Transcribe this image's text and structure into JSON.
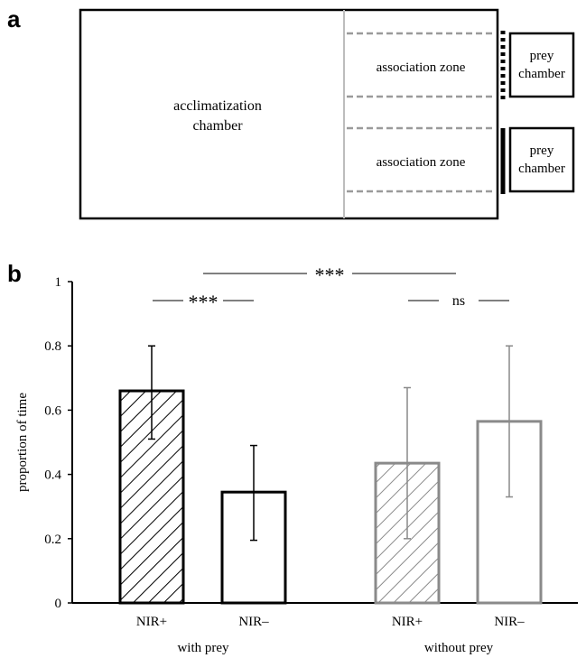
{
  "panel_a": {
    "label": "a",
    "acclimatization_chamber": "acclimatization\nchamber",
    "zones": [
      {
        "label": "association zone",
        "chamber_label": "prey\nchamber",
        "barrier": "dotted"
      },
      {
        "label": "association zone",
        "chamber_label": "prey\nchamber",
        "barrier": "solid"
      }
    ]
  },
  "panel_b": {
    "label": "b"
  },
  "chart_data": {
    "type": "bar",
    "ylabel": "proportion of time",
    "ylim": [
      0,
      1
    ],
    "yticks": [
      "0",
      "0.2",
      "0.4",
      "0.6",
      "0.8",
      "1"
    ],
    "groups": [
      {
        "name": "with prey",
        "bars": [
          {
            "label": "NIR+",
            "value": 0.66,
            "err_low": 0.51,
            "err_high": 0.8,
            "fill": "hatched",
            "color": "#000000"
          },
          {
            "label": "NIR–",
            "value": 0.345,
            "err_low": 0.195,
            "err_high": 0.49,
            "fill": "open",
            "color": "#000000"
          }
        ],
        "significance": "***"
      },
      {
        "name": "without prey",
        "bars": [
          {
            "label": "NIR+",
            "value": 0.435,
            "err_low": 0.2,
            "err_high": 0.67,
            "fill": "hatched",
            "color": "#8a8a8a"
          },
          {
            "label": "NIR–",
            "value": 0.565,
            "err_low": 0.33,
            "err_high": 0.8,
            "fill": "open",
            "color": "#8a8a8a"
          }
        ],
        "significance": "ns"
      }
    ],
    "between_groups_significance": "***"
  }
}
